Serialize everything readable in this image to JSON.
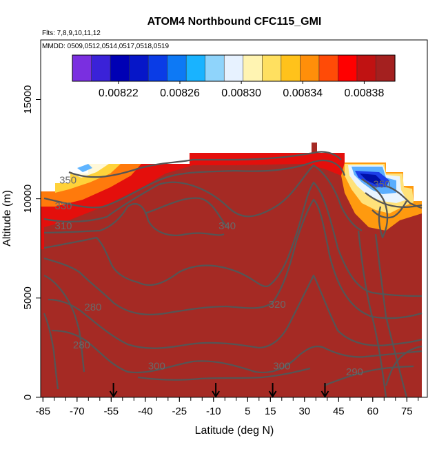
{
  "chart_data": {
    "type": "heatmap",
    "title": "ATOM4 Northbound CFC115_GMI",
    "subtitle": "Flts: 7,8,9,10,11,12",
    "annotation": "MMDD: 0509,0512,0514,0517,0518,0519",
    "xlabel": "Latitude (deg N)",
    "ylabel": "Altitude (m)",
    "xlim": [
      -86,
      84
    ],
    "ylim": [
      0,
      18000
    ],
    "x_ticks": [
      "-85",
      "-70",
      "-55",
      "-40",
      "-25",
      "-10",
      "5",
      "15",
      "30",
      "45",
      "60",
      "75"
    ],
    "x_tick_values": [
      -85,
      -70,
      -55,
      -40,
      -25,
      -10,
      5,
      15,
      30,
      45,
      60,
      75
    ],
    "y_ticks": [
      "0",
      "5000",
      "10000",
      "15000"
    ],
    "y_tick_values": [
      0,
      5000,
      10000,
      15000
    ],
    "colorbar": {
      "range": [
        0.00819,
        0.0084
      ],
      "tick_labels": [
        "0.00822",
        "0.00826",
        "0.00830",
        "0.00834",
        "0.00838"
      ],
      "tick_values": [
        0.00822,
        0.00826,
        0.0083,
        0.00834,
        0.00838
      ],
      "colors": [
        "#7a2fe0",
        "#3a22d8",
        "#0000b4",
        "#0616c8",
        "#0a3ce6",
        "#0d79f5",
        "#19b3ff",
        "#8fd4fb",
        "#e7f2ff",
        "#fff4b2",
        "#ffe060",
        "#ffc21b",
        "#ff8f0a",
        "#ff4b07",
        "#ff0000",
        "#c01212",
        "#a4201f"
      ]
    },
    "contour_labels": [
      {
        "text": "350",
        "x": -74,
        "y": 10900
      },
      {
        "text": "330",
        "x": -76,
        "y": 9600
      },
      {
        "text": "310",
        "x": -76,
        "y": 8600
      },
      {
        "text": "340",
        "x": -4,
        "y": 8600
      },
      {
        "text": "320",
        "x": 18,
        "y": 4650
      },
      {
        "text": "280",
        "x": -63,
        "y": 4500
      },
      {
        "text": "280",
        "x": -68,
        "y": 2600
      },
      {
        "text": "300",
        "x": -35,
        "y": 1550
      },
      {
        "text": "300",
        "x": 20,
        "y": 1550
      },
      {
        "text": "290",
        "x": 52,
        "y": 1250
      },
      {
        "text": "350",
        "x": 64,
        "y": 10700
      }
    ],
    "flight_markers_x": [
      -54,
      -9,
      16,
      39
    ]
  },
  "colors": {
    "background_field": "#a52a24",
    "contour": "#555555",
    "axis": "#000000"
  }
}
